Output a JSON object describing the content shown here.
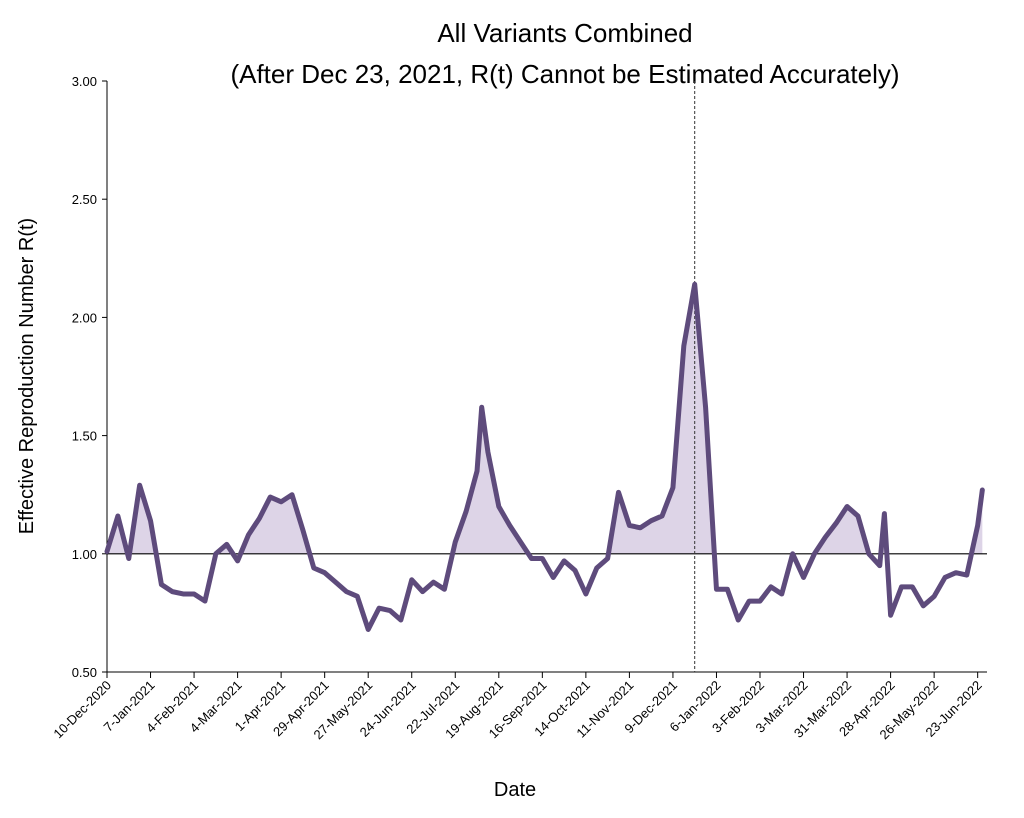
{
  "chart_data": {
    "type": "line",
    "title": [
      "All Variants Combined",
      "(After Dec 23, 2021, R(t) Cannot be Estimated Accurately)"
    ],
    "xlabel": "Date",
    "ylabel": "Effective Reproduction Number R(t)",
    "x": [
      "2020-12-10",
      "2020-12-17",
      "2020-12-24",
      "2020-12-31",
      "2021-01-07",
      "2021-01-14",
      "2021-01-21",
      "2021-01-28",
      "2021-02-04",
      "2021-02-11",
      "2021-02-18",
      "2021-02-25",
      "2021-03-04",
      "2021-03-11",
      "2021-03-18",
      "2021-03-25",
      "2021-04-01",
      "2021-04-08",
      "2021-04-15",
      "2021-04-22",
      "2021-04-29",
      "2021-05-06",
      "2021-05-13",
      "2021-05-20",
      "2021-05-27",
      "2021-06-03",
      "2021-06-10",
      "2021-06-17",
      "2021-06-24",
      "2021-07-01",
      "2021-07-08",
      "2021-07-15",
      "2021-07-22",
      "2021-07-29",
      "2021-08-05",
      "2021-08-08",
      "2021-08-12",
      "2021-08-19",
      "2021-08-26",
      "2021-09-02",
      "2021-09-09",
      "2021-09-16",
      "2021-09-23",
      "2021-09-30",
      "2021-10-07",
      "2021-10-14",
      "2021-10-21",
      "2021-10-28",
      "2021-11-04",
      "2021-11-11",
      "2021-11-18",
      "2021-11-25",
      "2021-12-02",
      "2021-12-09",
      "2021-12-16",
      "2021-12-23",
      "2021-12-30",
      "2022-01-06",
      "2022-01-13",
      "2022-01-20",
      "2022-01-27",
      "2022-02-03",
      "2022-02-10",
      "2022-02-17",
      "2022-02-24",
      "2022-03-03",
      "2022-03-10",
      "2022-03-17",
      "2022-03-24",
      "2022-03-31",
      "2022-04-07",
      "2022-04-14",
      "2022-04-21",
      "2022-04-24",
      "2022-04-28",
      "2022-05-05",
      "2022-05-12",
      "2022-05-19",
      "2022-05-26",
      "2022-06-02",
      "2022-06-09",
      "2022-06-16",
      "2022-06-23",
      "2022-06-26"
    ],
    "series": [
      {
        "name": "R(t)",
        "color": "#5e4b7c",
        "fill": "#ddd4e7",
        "values": [
          1.01,
          1.16,
          0.98,
          1.29,
          1.14,
          0.87,
          0.84,
          0.83,
          0.83,
          0.8,
          1.0,
          1.04,
          0.97,
          1.08,
          1.15,
          1.24,
          1.22,
          1.25,
          1.1,
          0.94,
          0.92,
          0.88,
          0.84,
          0.82,
          0.68,
          0.77,
          0.76,
          0.72,
          0.89,
          0.84,
          0.88,
          0.85,
          1.05,
          1.18,
          1.35,
          1.62,
          1.43,
          1.2,
          1.12,
          1.05,
          0.98,
          0.98,
          0.9,
          0.97,
          0.93,
          0.83,
          0.94,
          0.98,
          1.26,
          1.12,
          1.11,
          1.14,
          1.16,
          1.28,
          1.88,
          2.14,
          1.62,
          0.85,
          0.85,
          0.72,
          0.8,
          0.8,
          0.86,
          0.83,
          1.0,
          0.9,
          1.0,
          1.07,
          1.13,
          1.2,
          1.16,
          1.0,
          0.95,
          1.17,
          0.74,
          0.86,
          0.86,
          0.78,
          0.82,
          0.9,
          0.92,
          0.91,
          1.12,
          1.27
        ]
      }
    ],
    "xlim": [
      "2020-12-10",
      "2022-06-29"
    ],
    "xticks": [
      {
        "value": "2020-12-10",
        "label": "10-Dec-2020"
      },
      {
        "value": "2021-01-07",
        "label": "7-Jan-2021"
      },
      {
        "value": "2021-02-04",
        "label": "4-Feb-2021"
      },
      {
        "value": "2021-03-04",
        "label": "4-Mar-2021"
      },
      {
        "value": "2021-04-01",
        "label": "1-Apr-2021"
      },
      {
        "value": "2021-04-29",
        "label": "29-Apr-2021"
      },
      {
        "value": "2021-05-27",
        "label": "27-May-2021"
      },
      {
        "value": "2021-06-24",
        "label": "24-Jun-2021"
      },
      {
        "value": "2021-07-22",
        "label": "22-Jul-2021"
      },
      {
        "value": "2021-08-19",
        "label": "19-Aug-2021"
      },
      {
        "value": "2021-09-16",
        "label": "16-Sep-2021"
      },
      {
        "value": "2021-10-14",
        "label": "14-Oct-2021"
      },
      {
        "value": "2021-11-11",
        "label": "11-Nov-2021"
      },
      {
        "value": "2021-12-09",
        "label": "9-Dec-2021"
      },
      {
        "value": "2022-01-06",
        "label": "6-Jan-2022"
      },
      {
        "value": "2022-02-03",
        "label": "3-Feb-2022"
      },
      {
        "value": "2022-03-03",
        "label": "3-Mar-2022"
      },
      {
        "value": "2022-03-31",
        "label": "31-Mar-2022"
      },
      {
        "value": "2022-04-28",
        "label": "28-Apr-2022"
      },
      {
        "value": "2022-05-26",
        "label": "26-May-2022"
      },
      {
        "value": "2022-06-23",
        "label": "23-Jun-2022"
      }
    ],
    "ylim": [
      0.5,
      3.0
    ],
    "yticks": [
      {
        "value": 0.5,
        "label": "0.50"
      },
      {
        "value": 1.0,
        "label": "1.00"
      },
      {
        "value": 1.5,
        "label": "1.50"
      },
      {
        "value": 2.0,
        "label": "2.00"
      },
      {
        "value": 2.5,
        "label": "2.50"
      },
      {
        "value": 3.0,
        "label": "3.00"
      }
    ],
    "hline": 1.0,
    "vline": "2021-12-23"
  }
}
